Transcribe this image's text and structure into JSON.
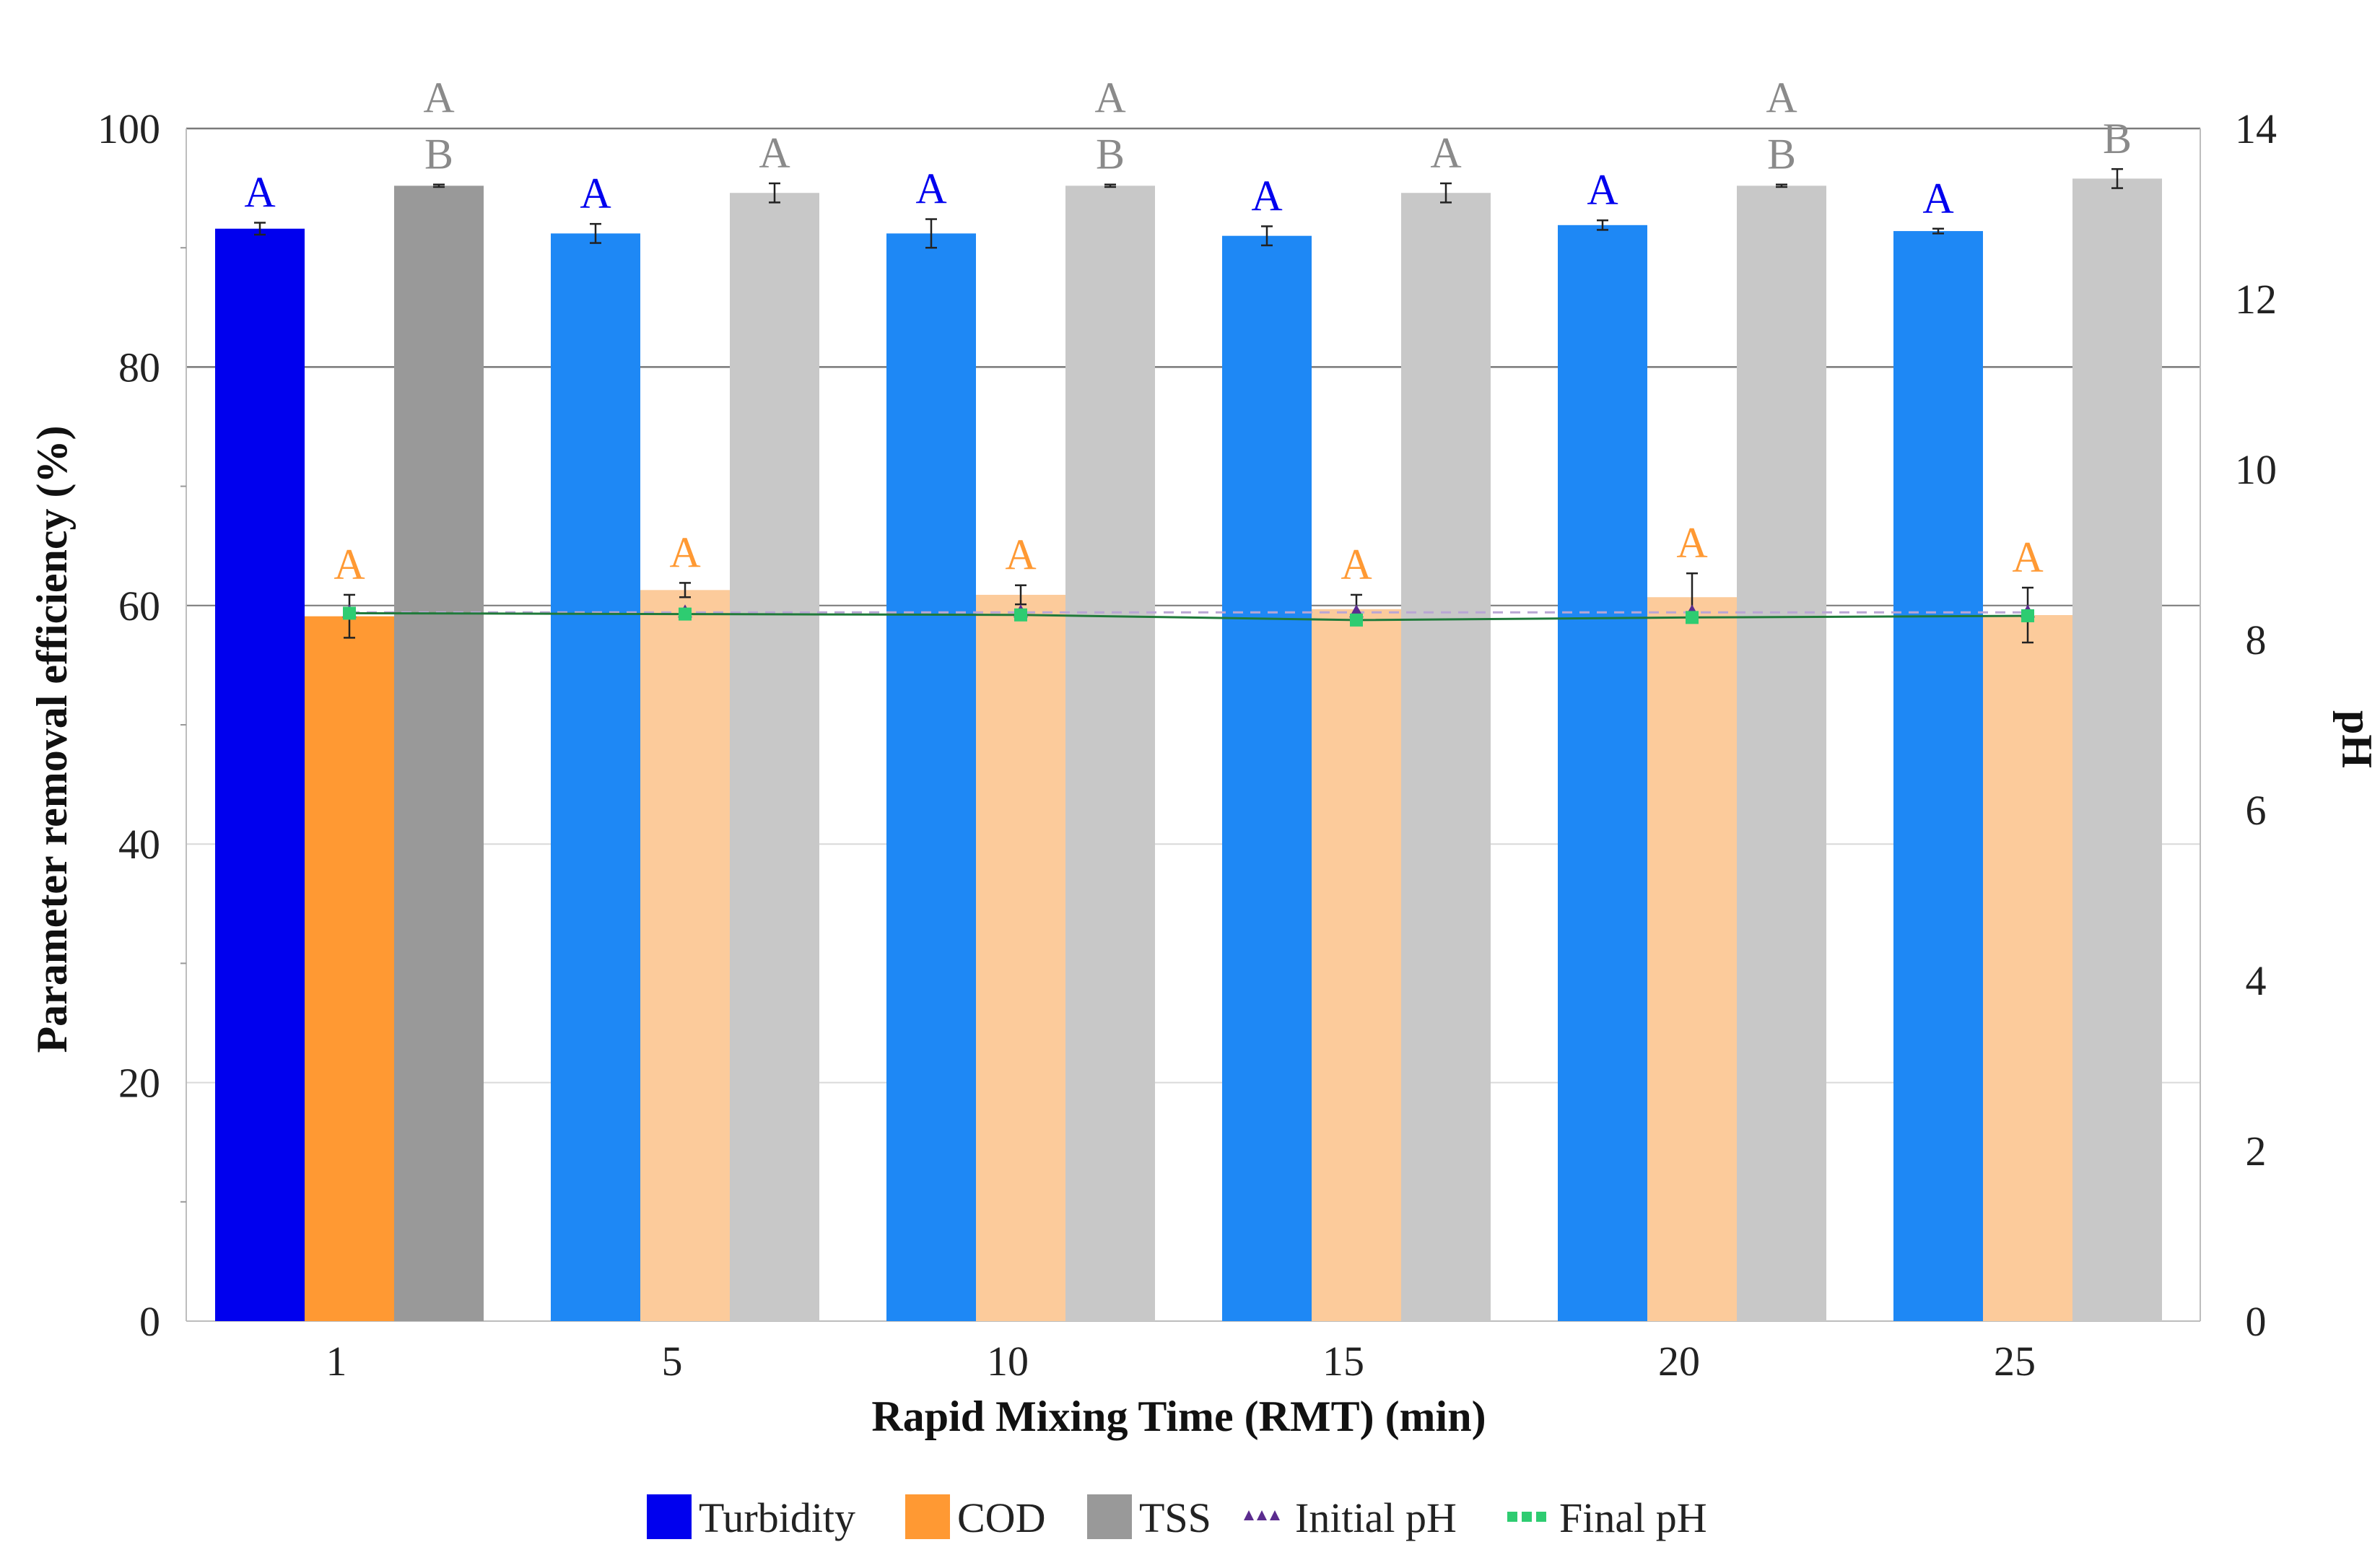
{
  "chart_data": {
    "type": "bar",
    "xlabel": "Rapid Mixing Time (RMT) (min)",
    "ylabel": "Parameter removal efficiency (%)",
    "y2label": "pH",
    "ylim": [
      0,
      100
    ],
    "y2lim": [
      0,
      14
    ],
    "yticks": [
      "0",
      "20",
      "40",
      "60",
      "80",
      "100"
    ],
    "y2ticks": [
      "0",
      "2",
      "4",
      "6",
      "8",
      "10",
      "12",
      "14"
    ],
    "categories": [
      "1",
      "5",
      "10",
      "15",
      "20",
      "25"
    ],
    "highlight_category": "1",
    "series": [
      {
        "name": "Turbidity",
        "color_bold": "#0000ee",
        "color_light": "#1e88f5",
        "values": [
          91.6,
          91.2,
          91.2,
          91.0,
          91.9,
          91.4
        ],
        "errors": [
          0.5,
          0.8,
          1.2,
          0.8,
          0.4,
          0.2
        ],
        "letters": [
          [
            "A"
          ],
          [
            "A"
          ],
          [
            "A"
          ],
          [
            "A"
          ],
          [
            "A"
          ],
          [
            "A"
          ]
        ],
        "letter_color": "#0000ee"
      },
      {
        "name": "COD",
        "color_bold": "#ff9933",
        "color_light": "#fccb9b",
        "values": [
          59.1,
          61.3,
          60.9,
          59.7,
          60.7,
          59.2
        ],
        "errors": [
          1.8,
          0.6,
          0.8,
          1.2,
          2.0,
          2.3
        ],
        "letters": [
          [
            "A"
          ],
          [
            "A"
          ],
          [
            "A"
          ],
          [
            "A"
          ],
          [
            "A"
          ],
          [
            "A"
          ]
        ],
        "letter_color": "#ff9933"
      },
      {
        "name": "TSS",
        "color_bold": "#999999",
        "color_light": "#c8c8c8",
        "values": [
          95.2,
          94.6,
          95.2,
          94.6,
          95.2,
          95.8
        ],
        "errors": [
          0.1,
          0.8,
          0.1,
          0.8,
          0.1,
          0.8
        ],
        "letters": [
          [
            "A",
            "B"
          ],
          [
            "A"
          ],
          [
            "A",
            "B"
          ],
          [
            "A"
          ],
          [
            "A",
            "B"
          ],
          [
            "B"
          ]
        ],
        "letter_color": "#8a8a8a"
      }
    ],
    "lines": [
      {
        "name": "Initial pH",
        "axis": "right",
        "color": "#5b2c8f",
        "values": [
          8.32,
          8.32,
          8.32,
          8.32,
          8.32,
          8.32
        ]
      },
      {
        "name": "Final pH",
        "axis": "right",
        "color": "#2ecc71",
        "line_color": "#1f7a3a",
        "values": [
          8.31,
          8.3,
          8.29,
          8.23,
          8.26,
          8.28
        ]
      }
    ],
    "legend": [
      "Turbidity",
      "COD",
      "TSS",
      "Initial pH",
      "Final pH"
    ],
    "legend_position": "bottom-center"
  }
}
